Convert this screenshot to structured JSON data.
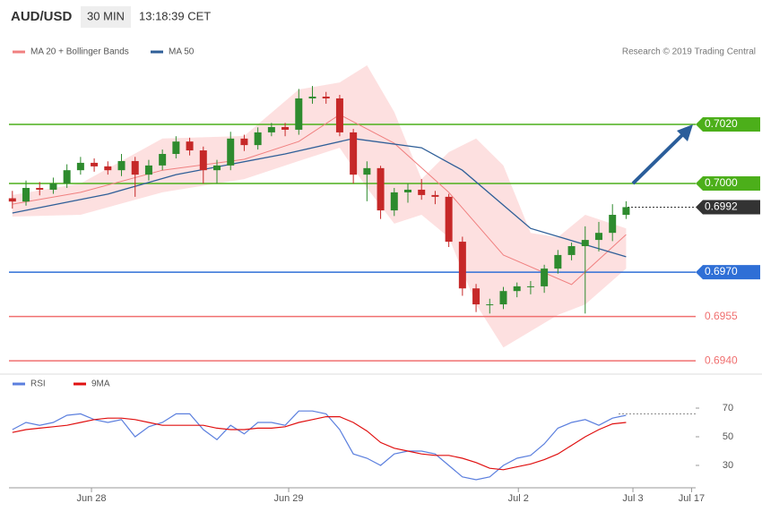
{
  "chart_data": [
    {
      "type": "candlestick",
      "title": "AUD/USD",
      "timeframe": "30 MIN",
      "time": "13:18:39 CET",
      "credit": "Research © 2019 Trading Central",
      "xlim": [
        -0.25,
        50.1
      ],
      "ylim": [
        0.69364,
        0.70409
      ],
      "up_color": "#2e8b2e",
      "down_color": "#c62828",
      "x": [
        0,
        1,
        2,
        3,
        4,
        5,
        6,
        7,
        8,
        9,
        10,
        11,
        12,
        13,
        14,
        15,
        16,
        17,
        18,
        19,
        20,
        21,
        22,
        23,
        24,
        25,
        26,
        27,
        28,
        29,
        30,
        31,
        32,
        33,
        34,
        35,
        36,
        37,
        38,
        39,
        40,
        41,
        42,
        43,
        44,
        45
      ],
      "open": [
        0.6995,
        0.69939,
        0.69985,
        0.69979,
        0.7,
        0.70045,
        0.7007,
        0.70058,
        0.70045,
        0.70076,
        0.7003,
        0.70061,
        0.701,
        0.70142,
        0.70112,
        0.70045,
        0.70061,
        0.70152,
        0.7013,
        0.70173,
        0.70191,
        0.70182,
        0.70288,
        0.70294,
        0.70288,
        0.70173,
        0.7003,
        0.70052,
        0.69909,
        0.6997,
        0.69979,
        0.69961,
        0.69955,
        0.69803,
        0.69645,
        0.69591,
        0.69591,
        0.69636,
        0.69652,
        0.69652,
        0.69712,
        0.69758,
        0.69788,
        0.69809,
        0.69833,
        0.69894
      ],
      "high": [
        0.69975,
        0.7001,
        0.70005,
        0.7002,
        0.70065,
        0.7009,
        0.70085,
        0.70075,
        0.701,
        0.7009,
        0.7008,
        0.70115,
        0.7016,
        0.70155,
        0.70125,
        0.7008,
        0.70175,
        0.70165,
        0.7019,
        0.70205,
        0.70205,
        0.7032,
        0.7033,
        0.7031,
        0.703,
        0.70185,
        0.70075,
        0.7006,
        0.69985,
        0.7,
        0.70015,
        0.69975,
        0.69965,
        0.6982,
        0.6966,
        0.6961,
        0.6965,
        0.69665,
        0.6967,
        0.69725,
        0.69775,
        0.698,
        0.69855,
        0.6987,
        0.6993,
        0.6994
      ],
      "low": [
        0.69915,
        0.69925,
        0.6996,
        0.69965,
        0.69985,
        0.7003,
        0.7004,
        0.7003,
        0.70025,
        0.69955,
        0.7001,
        0.70045,
        0.70085,
        0.70095,
        0.7,
        0.7,
        0.70045,
        0.7011,
        0.70115,
        0.7016,
        0.7016,
        0.70165,
        0.7027,
        0.7027,
        0.7016,
        0.7,
        0.6994,
        0.6988,
        0.6989,
        0.69935,
        0.69945,
        0.6993,
        0.69785,
        0.6962,
        0.69565,
        0.6956,
        0.69575,
        0.69615,
        0.69625,
        0.6963,
        0.69695,
        0.6974,
        0.6956,
        0.6977,
        0.69805,
        0.6988
      ],
      "close": [
        0.69939,
        0.69985,
        0.69979,
        0.7,
        0.70045,
        0.7007,
        0.70058,
        0.70045,
        0.70076,
        0.7003,
        0.70061,
        0.701,
        0.70142,
        0.70112,
        0.70045,
        0.70061,
        0.70152,
        0.7013,
        0.70173,
        0.70191,
        0.70182,
        0.70288,
        0.70294,
        0.70288,
        0.70173,
        0.7003,
        0.70052,
        0.69909,
        0.6997,
        0.69979,
        0.69961,
        0.69955,
        0.69803,
        0.69645,
        0.69591,
        0.69591,
        0.69636,
        0.69652,
        0.69652,
        0.69712,
        0.69758,
        0.69788,
        0.69809,
        0.69833,
        0.69894,
        0.6992
      ],
      "ma20": {
        "name": "MA 20 + Bollinger Bands",
        "color": "#f08080",
        "x": [
          0,
          5,
          11,
          17,
          21,
          24,
          28,
          32,
          36,
          41,
          45
        ],
        "values": [
          0.6993,
          0.6997,
          0.70045,
          0.70082,
          0.70142,
          0.70233,
          0.70136,
          0.6997,
          0.69758,
          0.69658,
          0.69827
        ]
      },
      "ma50": {
        "name": "MA 50",
        "color": "#2f5f98",
        "x": [
          0,
          7,
          12,
          20,
          25,
          30,
          33,
          38,
          45
        ],
        "values": [
          0.699,
          0.69964,
          0.7003,
          0.701,
          0.70152,
          0.70121,
          0.70045,
          0.69848,
          0.69752
        ]
      },
      "bands": {
        "color": "#fde0e0",
        "x": [
          0,
          5,
          11,
          17,
          21,
          24,
          26,
          28,
          30,
          32,
          34,
          36,
          38,
          40,
          42,
          45
        ],
        "upper": [
          0.69961,
          0.7,
          0.70152,
          0.70161,
          0.70318,
          0.70342,
          0.704,
          0.70242,
          0.70015,
          0.70106,
          0.70152,
          0.70061,
          0.69833,
          0.69818,
          0.69894,
          0.69848
        ],
        "lower": [
          0.69888,
          0.69894,
          0.6997,
          0.70015,
          0.70076,
          0.70121,
          0.69985,
          0.69864,
          0.69894,
          0.69818,
          0.69591,
          0.69445,
          0.695,
          0.69555,
          0.69591,
          0.69712
        ]
      },
      "levels": [
        {
          "value": 0.702,
          "label": "0.7020",
          "color": "#4caf1a",
          "tag": true
        },
        {
          "value": 0.7,
          "label": "0.7000",
          "color": "#4caf1a",
          "tag": true
        },
        {
          "value": 0.6992,
          "label": "0.6992",
          "color": "#333333",
          "tag": true,
          "dotted": true
        },
        {
          "value": 0.697,
          "label": "0.6970",
          "color": "#2f6fd6",
          "tag": true
        },
        {
          "value": 0.6955,
          "label": "0.6955",
          "color": "#f07070",
          "tag": false
        },
        {
          "value": 0.694,
          "label": "0.6940",
          "color": "#f07070",
          "tag": false
        }
      ]
    },
    {
      "type": "line",
      "xlim": [
        -0.25,
        50.1
      ],
      "ylim": [
        15,
        90
      ],
      "yticks": [
        30,
        50,
        70
      ],
      "level": 66,
      "xticks": [
        {
          "value": 5.8,
          "label": "Jun 28"
        },
        {
          "value": 20.26,
          "label": "Jun 29"
        },
        {
          "value": 37.1,
          "label": "Jul 2"
        },
        {
          "value": 45.5,
          "label": "Jul 3"
        },
        {
          "value": 49.8,
          "label": "Jul 17"
        }
      ],
      "x": [
        0,
        1,
        2,
        3,
        4,
        5,
        6,
        7,
        8,
        9,
        10,
        11,
        12,
        13,
        14,
        15,
        16,
        17,
        18,
        19,
        20,
        21,
        22,
        23,
        24,
        25,
        26,
        27,
        28,
        29,
        30,
        31,
        32,
        33,
        34,
        35,
        36,
        37,
        38,
        39,
        40,
        41,
        42,
        43,
        44,
        45
      ],
      "series": [
        {
          "name": "RSI",
          "color": "#5b7fde",
          "values": [
            55,
            60,
            58,
            60,
            65,
            66,
            62,
            60,
            62,
            50,
            57,
            60,
            66,
            66,
            55,
            48,
            58,
            52,
            60,
            60,
            58,
            68,
            68,
            66,
            55,
            38,
            35,
            30,
            38,
            40,
            40,
            38,
            30,
            22,
            20,
            22,
            30,
            35,
            37,
            45,
            56,
            60,
            62,
            58,
            63,
            65
          ]
        },
        {
          "name": "9MA",
          "color": "#e01010",
          "values": [
            53,
            55,
            56,
            57,
            58,
            60,
            62,
            63,
            63,
            62,
            60,
            58,
            58,
            58,
            58,
            56,
            55,
            55,
            56,
            56,
            57,
            60,
            62,
            64,
            64,
            60,
            54,
            46,
            42,
            40,
            38,
            37,
            37,
            35,
            32,
            28,
            27,
            29,
            31,
            34,
            38,
            44,
            50,
            55,
            59,
            60
          ]
        }
      ]
    }
  ]
}
